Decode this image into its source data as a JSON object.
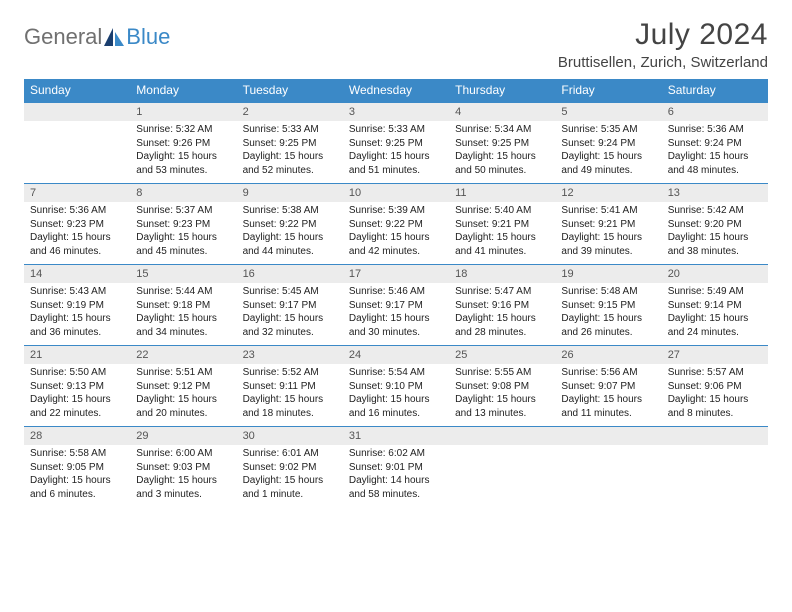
{
  "logo": {
    "general": "General",
    "blue": "Blue"
  },
  "title": "July 2024",
  "location": "Bruttisellen, Zurich, Switzerland",
  "colors": {
    "accent": "#3b89c7",
    "date_bg": "#ececec",
    "text": "#222222",
    "muted": "#555555",
    "bg": "#ffffff"
  },
  "day_headers": [
    "Sunday",
    "Monday",
    "Tuesday",
    "Wednesday",
    "Thursday",
    "Friday",
    "Saturday"
  ],
  "weeks": [
    [
      null,
      {
        "n": "1",
        "sunrise": "Sunrise: 5:32 AM",
        "sunset": "Sunset: 9:26 PM",
        "daylight1": "Daylight: 15 hours",
        "daylight2": "and 53 minutes."
      },
      {
        "n": "2",
        "sunrise": "Sunrise: 5:33 AM",
        "sunset": "Sunset: 9:25 PM",
        "daylight1": "Daylight: 15 hours",
        "daylight2": "and 52 minutes."
      },
      {
        "n": "3",
        "sunrise": "Sunrise: 5:33 AM",
        "sunset": "Sunset: 9:25 PM",
        "daylight1": "Daylight: 15 hours",
        "daylight2": "and 51 minutes."
      },
      {
        "n": "4",
        "sunrise": "Sunrise: 5:34 AM",
        "sunset": "Sunset: 9:25 PM",
        "daylight1": "Daylight: 15 hours",
        "daylight2": "and 50 minutes."
      },
      {
        "n": "5",
        "sunrise": "Sunrise: 5:35 AM",
        "sunset": "Sunset: 9:24 PM",
        "daylight1": "Daylight: 15 hours",
        "daylight2": "and 49 minutes."
      },
      {
        "n": "6",
        "sunrise": "Sunrise: 5:36 AM",
        "sunset": "Sunset: 9:24 PM",
        "daylight1": "Daylight: 15 hours",
        "daylight2": "and 48 minutes."
      }
    ],
    [
      {
        "n": "7",
        "sunrise": "Sunrise: 5:36 AM",
        "sunset": "Sunset: 9:23 PM",
        "daylight1": "Daylight: 15 hours",
        "daylight2": "and 46 minutes."
      },
      {
        "n": "8",
        "sunrise": "Sunrise: 5:37 AM",
        "sunset": "Sunset: 9:23 PM",
        "daylight1": "Daylight: 15 hours",
        "daylight2": "and 45 minutes."
      },
      {
        "n": "9",
        "sunrise": "Sunrise: 5:38 AM",
        "sunset": "Sunset: 9:22 PM",
        "daylight1": "Daylight: 15 hours",
        "daylight2": "and 44 minutes."
      },
      {
        "n": "10",
        "sunrise": "Sunrise: 5:39 AM",
        "sunset": "Sunset: 9:22 PM",
        "daylight1": "Daylight: 15 hours",
        "daylight2": "and 42 minutes."
      },
      {
        "n": "11",
        "sunrise": "Sunrise: 5:40 AM",
        "sunset": "Sunset: 9:21 PM",
        "daylight1": "Daylight: 15 hours",
        "daylight2": "and 41 minutes."
      },
      {
        "n": "12",
        "sunrise": "Sunrise: 5:41 AM",
        "sunset": "Sunset: 9:21 PM",
        "daylight1": "Daylight: 15 hours",
        "daylight2": "and 39 minutes."
      },
      {
        "n": "13",
        "sunrise": "Sunrise: 5:42 AM",
        "sunset": "Sunset: 9:20 PM",
        "daylight1": "Daylight: 15 hours",
        "daylight2": "and 38 minutes."
      }
    ],
    [
      {
        "n": "14",
        "sunrise": "Sunrise: 5:43 AM",
        "sunset": "Sunset: 9:19 PM",
        "daylight1": "Daylight: 15 hours",
        "daylight2": "and 36 minutes."
      },
      {
        "n": "15",
        "sunrise": "Sunrise: 5:44 AM",
        "sunset": "Sunset: 9:18 PM",
        "daylight1": "Daylight: 15 hours",
        "daylight2": "and 34 minutes."
      },
      {
        "n": "16",
        "sunrise": "Sunrise: 5:45 AM",
        "sunset": "Sunset: 9:17 PM",
        "daylight1": "Daylight: 15 hours",
        "daylight2": "and 32 minutes."
      },
      {
        "n": "17",
        "sunrise": "Sunrise: 5:46 AM",
        "sunset": "Sunset: 9:17 PM",
        "daylight1": "Daylight: 15 hours",
        "daylight2": "and 30 minutes."
      },
      {
        "n": "18",
        "sunrise": "Sunrise: 5:47 AM",
        "sunset": "Sunset: 9:16 PM",
        "daylight1": "Daylight: 15 hours",
        "daylight2": "and 28 minutes."
      },
      {
        "n": "19",
        "sunrise": "Sunrise: 5:48 AM",
        "sunset": "Sunset: 9:15 PM",
        "daylight1": "Daylight: 15 hours",
        "daylight2": "and 26 minutes."
      },
      {
        "n": "20",
        "sunrise": "Sunrise: 5:49 AM",
        "sunset": "Sunset: 9:14 PM",
        "daylight1": "Daylight: 15 hours",
        "daylight2": "and 24 minutes."
      }
    ],
    [
      {
        "n": "21",
        "sunrise": "Sunrise: 5:50 AM",
        "sunset": "Sunset: 9:13 PM",
        "daylight1": "Daylight: 15 hours",
        "daylight2": "and 22 minutes."
      },
      {
        "n": "22",
        "sunrise": "Sunrise: 5:51 AM",
        "sunset": "Sunset: 9:12 PM",
        "daylight1": "Daylight: 15 hours",
        "daylight2": "and 20 minutes."
      },
      {
        "n": "23",
        "sunrise": "Sunrise: 5:52 AM",
        "sunset": "Sunset: 9:11 PM",
        "daylight1": "Daylight: 15 hours",
        "daylight2": "and 18 minutes."
      },
      {
        "n": "24",
        "sunrise": "Sunrise: 5:54 AM",
        "sunset": "Sunset: 9:10 PM",
        "daylight1": "Daylight: 15 hours",
        "daylight2": "and 16 minutes."
      },
      {
        "n": "25",
        "sunrise": "Sunrise: 5:55 AM",
        "sunset": "Sunset: 9:08 PM",
        "daylight1": "Daylight: 15 hours",
        "daylight2": "and 13 minutes."
      },
      {
        "n": "26",
        "sunrise": "Sunrise: 5:56 AM",
        "sunset": "Sunset: 9:07 PM",
        "daylight1": "Daylight: 15 hours",
        "daylight2": "and 11 minutes."
      },
      {
        "n": "27",
        "sunrise": "Sunrise: 5:57 AM",
        "sunset": "Sunset: 9:06 PM",
        "daylight1": "Daylight: 15 hours",
        "daylight2": "and 8 minutes."
      }
    ],
    [
      {
        "n": "28",
        "sunrise": "Sunrise: 5:58 AM",
        "sunset": "Sunset: 9:05 PM",
        "daylight1": "Daylight: 15 hours",
        "daylight2": "and 6 minutes."
      },
      {
        "n": "29",
        "sunrise": "Sunrise: 6:00 AM",
        "sunset": "Sunset: 9:03 PM",
        "daylight1": "Daylight: 15 hours",
        "daylight2": "and 3 minutes."
      },
      {
        "n": "30",
        "sunrise": "Sunrise: 6:01 AM",
        "sunset": "Sunset: 9:02 PM",
        "daylight1": "Daylight: 15 hours",
        "daylight2": "and 1 minute."
      },
      {
        "n": "31",
        "sunrise": "Sunrise: 6:02 AM",
        "sunset": "Sunset: 9:01 PM",
        "daylight1": "Daylight: 14 hours",
        "daylight2": "and 58 minutes."
      },
      null,
      null,
      null
    ]
  ]
}
